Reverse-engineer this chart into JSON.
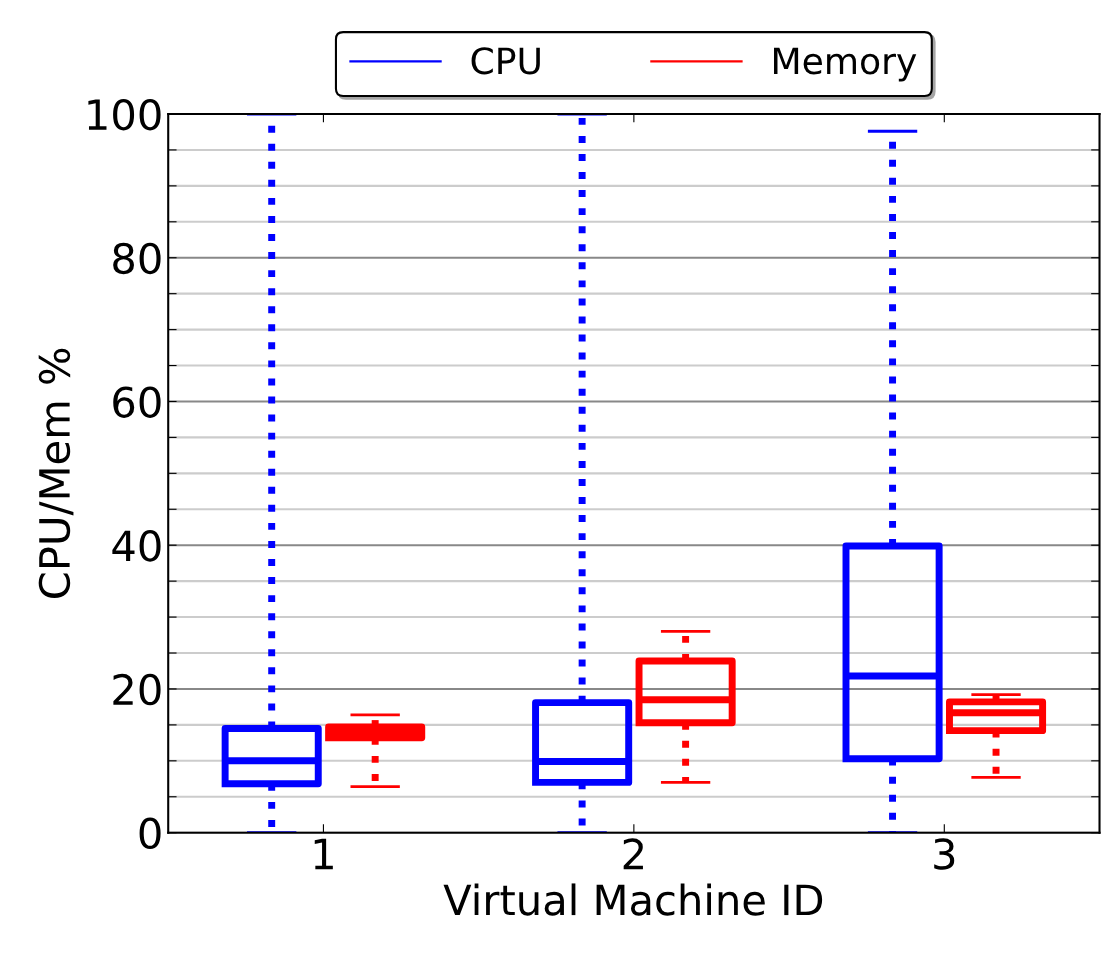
{
  "chart_data": {
    "type": "box",
    "xlabel": "Virtual Machine ID",
    "ylabel": "CPU/Mem %",
    "categories": [
      "1",
      "2",
      "3"
    ],
    "series": [
      {
        "name": "CPU",
        "color": "#0000ff",
        "line_style": "dashed",
        "boxes": [
          {
            "low": 0,
            "q1": 6.8,
            "median": 10.0,
            "q3": 14.5,
            "high": 100
          },
          {
            "low": 0,
            "q1": 7.0,
            "median": 9.9,
            "q3": 18.1,
            "high": 100
          },
          {
            "low": 0,
            "q1": 10.3,
            "median": 21.8,
            "q3": 39.9,
            "high": 97.6
          }
        ]
      },
      {
        "name": "Memory",
        "color": "#ff0000",
        "line_style": "dashed",
        "boxes": [
          {
            "low": 6.4,
            "q1": 13.2,
            "median": 14.0,
            "q3": 14.7,
            "high": 16.4
          },
          {
            "low": 7.0,
            "q1": 15.3,
            "median": 18.5,
            "q3": 23.9,
            "high": 28.0
          },
          {
            "low": 7.7,
            "q1": 14.2,
            "median": 16.7,
            "q3": 18.2,
            "high": 19.2
          }
        ]
      }
    ],
    "ylim": [
      0,
      100
    ],
    "yticks": [
      0,
      {
        "value": 5,
        "label": null
      },
      {
        "value": 10,
        "label": null
      },
      {
        "value": 15,
        "label": null
      },
      20,
      {
        "value": 25,
        "label": null
      },
      {
        "value": 30,
        "label": null
      },
      {
        "value": 35,
        "label": null
      },
      40,
      {
        "value": 45,
        "label": null
      },
      {
        "value": 50,
        "label": null
      },
      {
        "value": 55,
        "label": null
      },
      60,
      {
        "value": 65,
        "label": null
      },
      {
        "value": 70,
        "label": null
      },
      {
        "value": 75,
        "label": null
      },
      80,
      {
        "value": 85,
        "label": null
      },
      {
        "value": 90,
        "label": null
      },
      {
        "value": 95,
        "label": null
      },
      100
    ],
    "grid": "y",
    "legend": "top"
  }
}
